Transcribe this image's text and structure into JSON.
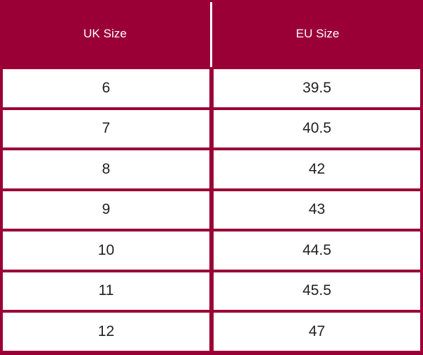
{
  "header": [
    "UK Size",
    "EU Size"
  ],
  "rows": [
    [
      6,
      39.5
    ],
    [
      7,
      40.5
    ],
    [
      8,
      42
    ],
    [
      9,
      43
    ],
    [
      10,
      44.5
    ],
    [
      11,
      45.5
    ],
    [
      12,
      47
    ]
  ]
}
